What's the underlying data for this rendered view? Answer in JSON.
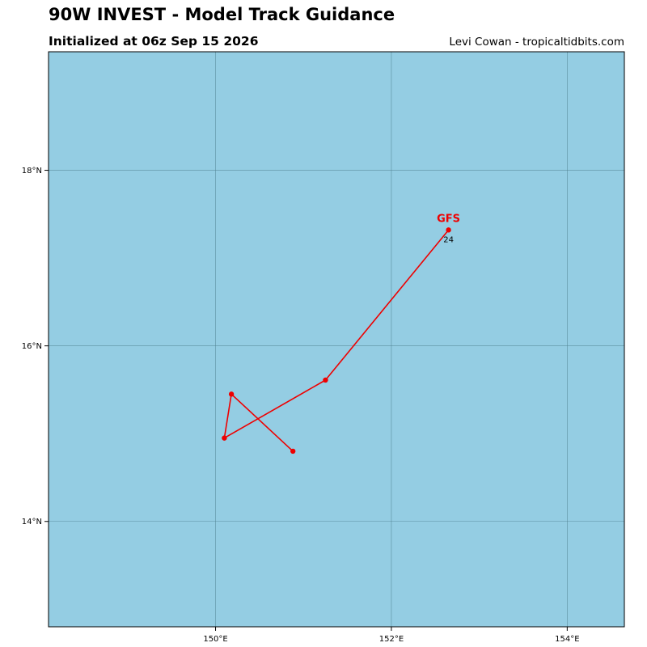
{
  "header": {
    "title": "90W INVEST - Model Track Guidance",
    "subtitle": "Initialized at 06z Sep 15 2026",
    "credit": "Levi Cowan - tropicaltidbits.com"
  },
  "map": {
    "lon_range": [
      148.1,
      154.65
    ],
    "lat_range": [
      12.8,
      19.35
    ],
    "ocean_color": "#94cde3",
    "grid_color": "#4f7f8f",
    "lat_ticks": [
      {
        "value": 14,
        "label": "14°N"
      },
      {
        "value": 16,
        "label": "16°N"
      },
      {
        "value": 18,
        "label": "18°N"
      }
    ],
    "lon_ticks": [
      {
        "value": 150,
        "label": "150°E"
      },
      {
        "value": 152,
        "label": "152°E"
      },
      {
        "value": 154,
        "label": "154°E"
      }
    ]
  },
  "tracks": [
    {
      "model": "GFS",
      "color": "#ee0000",
      "label": "GFS",
      "end_hour_label": "24",
      "points": [
        {
          "lon": 150.88,
          "lat": 14.8
        },
        {
          "lon": 150.18,
          "lat": 15.45
        },
        {
          "lon": 150.1,
          "lat": 14.95
        },
        {
          "lon": 151.25,
          "lat": 15.61
        },
        {
          "lon": 152.65,
          "lat": 17.32
        }
      ]
    }
  ]
}
